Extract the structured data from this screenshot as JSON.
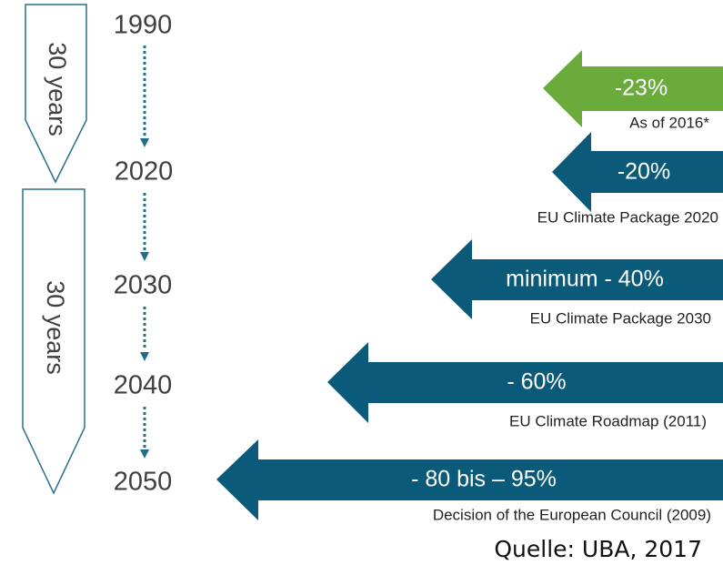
{
  "timeline": {
    "spans": [
      "30 years",
      "30 years"
    ],
    "years": [
      "1990",
      "2020",
      "2030",
      "2040",
      "2050"
    ]
  },
  "targets": [
    {
      "value": "-23%",
      "label": "As of 2016*"
    },
    {
      "value": "-20%",
      "label": "EU Climate Package 2020"
    },
    {
      "value": "minimum - 40%",
      "label": "EU Climate Package 2030"
    },
    {
      "value": "- 60%",
      "label": "EU Climate Roadmap (2011)"
    },
    {
      "value": "- 80 bis – 95%",
      "label": "Decision of the European Council (2009)"
    }
  ],
  "source": "Quelle: UBA, 2017"
}
